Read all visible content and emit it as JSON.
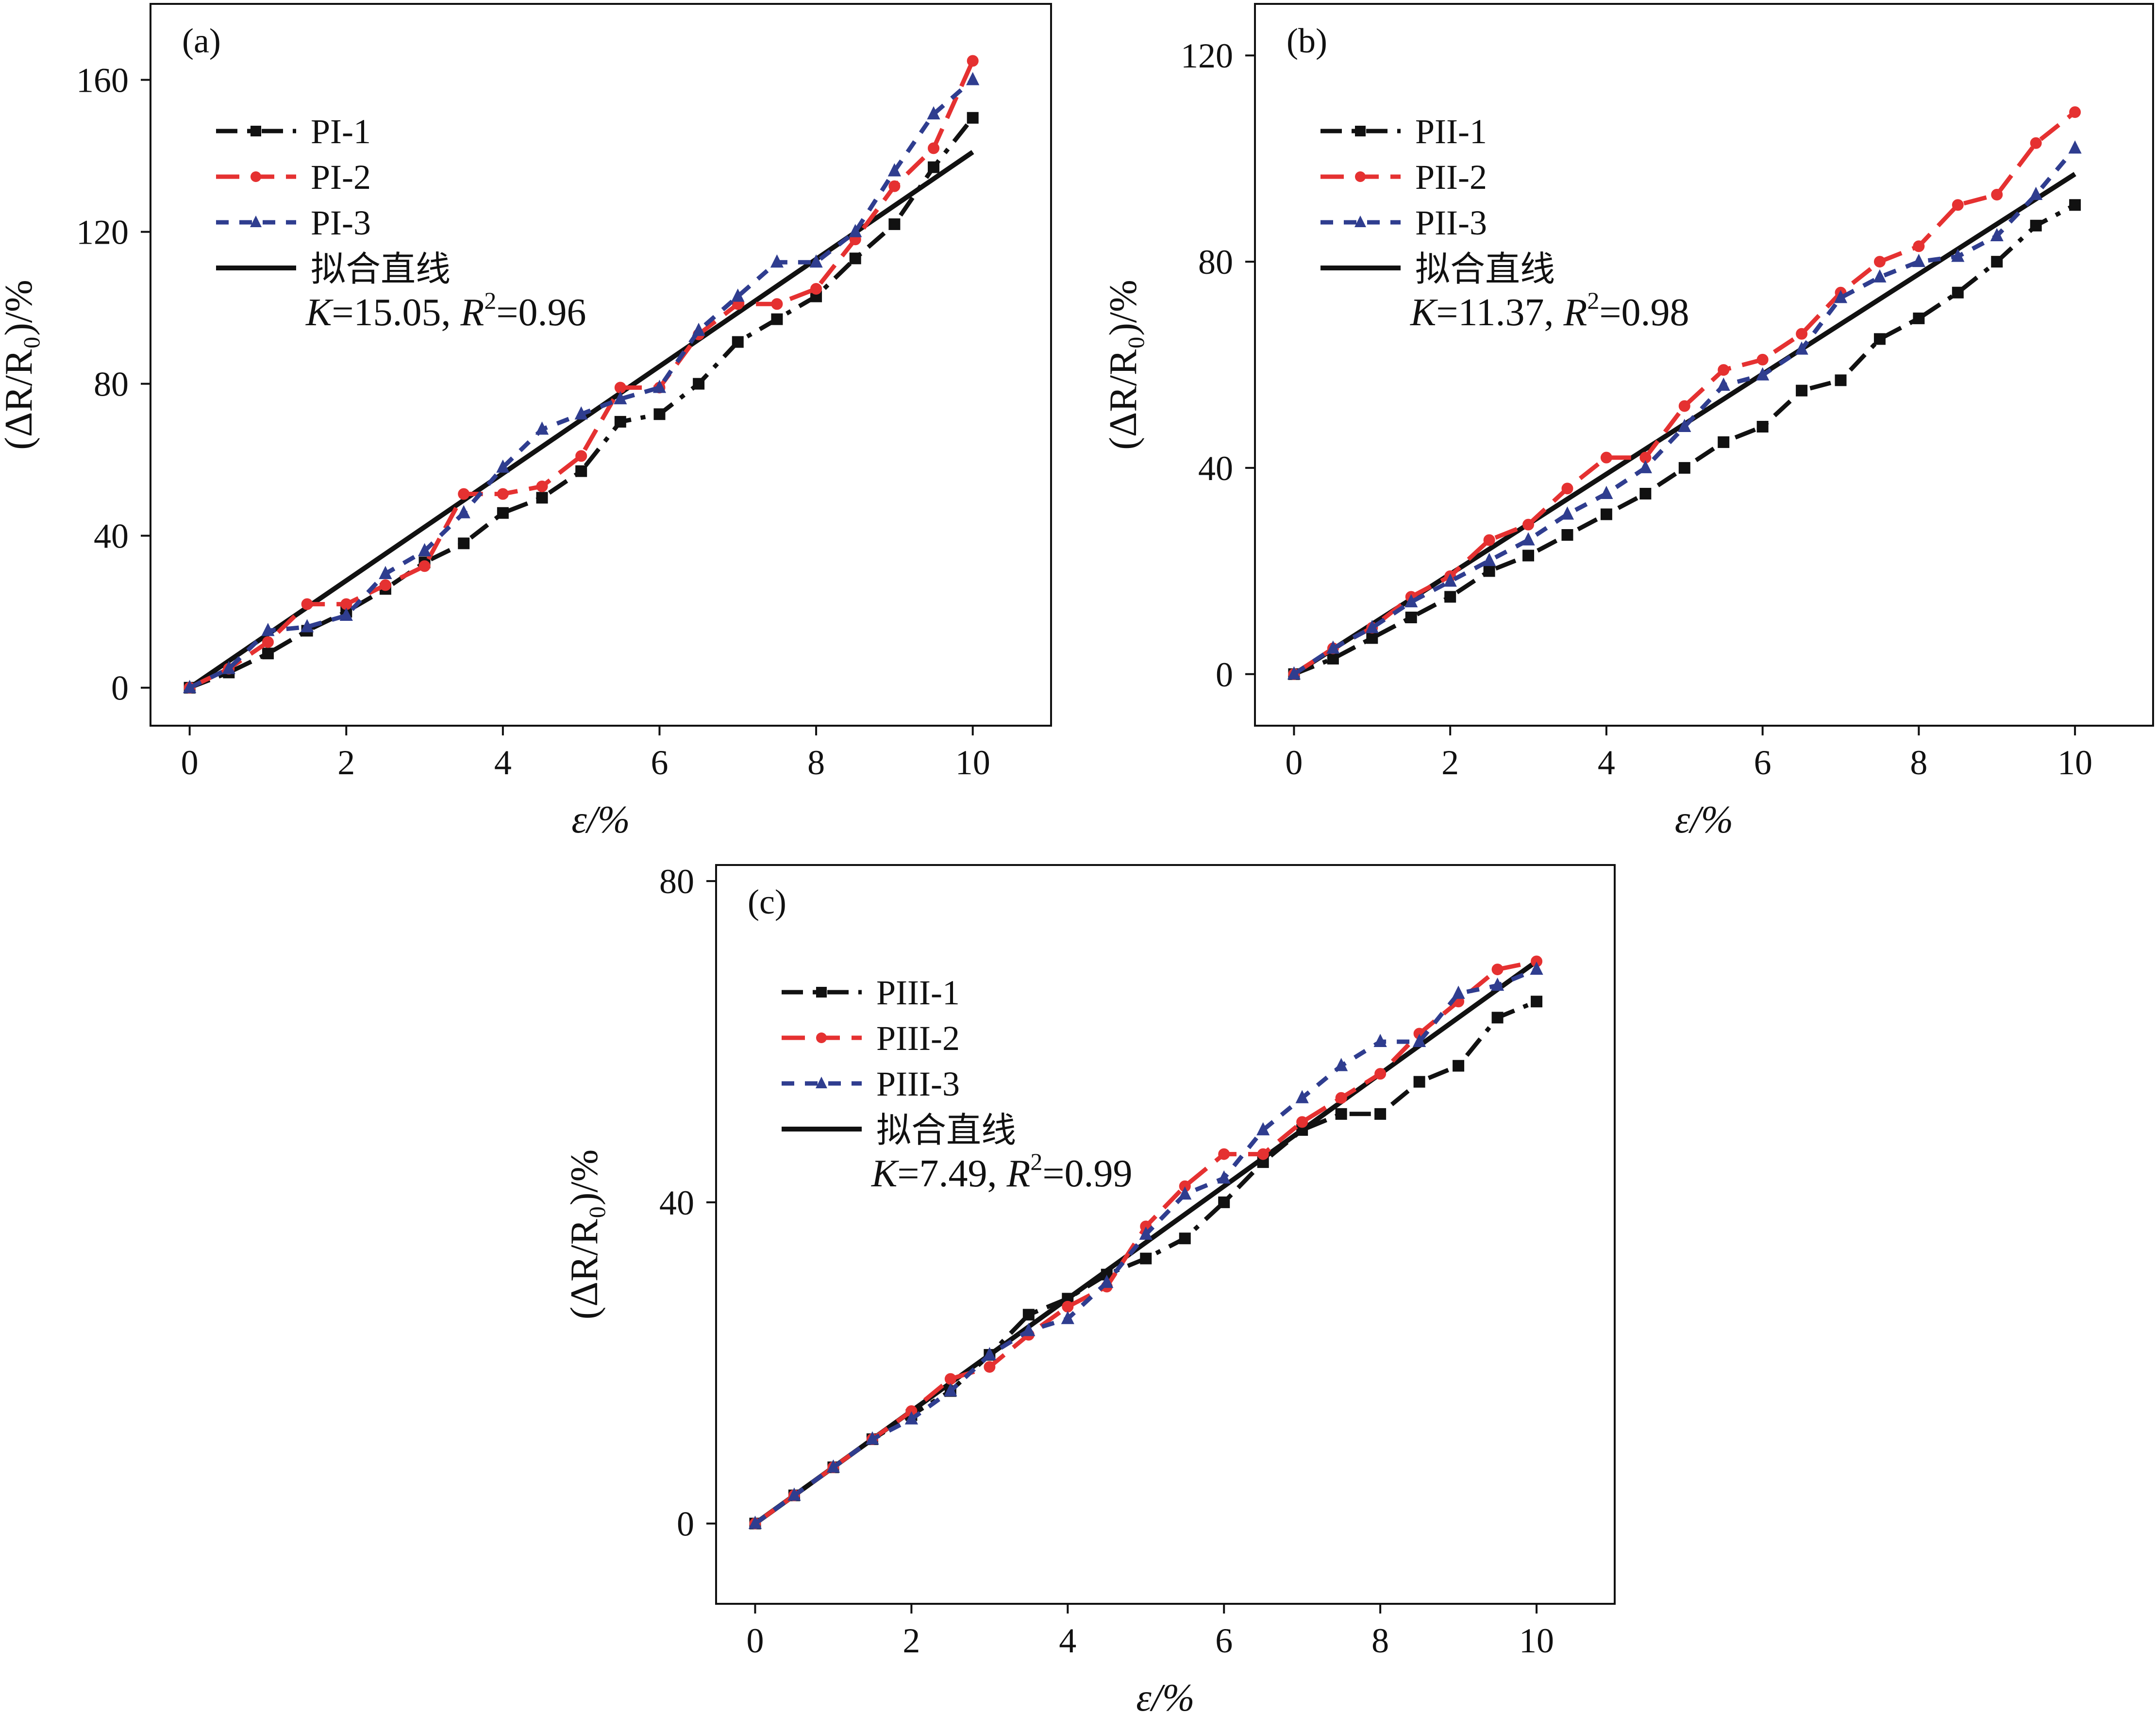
{
  "chart_data": [
    {
      "type": "line",
      "panel_label": "(a)",
      "xlabel": "ε/%",
      "ylabel": "(ΔR/R₀)/%",
      "xlim": [
        -0.5,
        11.0
      ],
      "ylim": [
        -10,
        180
      ],
      "xticks": [
        "0",
        "2",
        "4",
        "6",
        "8",
        "10"
      ],
      "yticks": [
        "0",
        "40",
        "80",
        "120",
        "160"
      ],
      "x": [
        0,
        0.5,
        1,
        1.5,
        2,
        2.5,
        3,
        3.5,
        4,
        4.5,
        5,
        5.5,
        6,
        6.5,
        7,
        7.5,
        8,
        8.5,
        9,
        9.5,
        10
      ],
      "series": [
        {
          "name": "PI-1",
          "color": "#111111",
          "style": "dashdot",
          "marker": "square",
          "values": [
            0,
            4,
            9,
            15,
            20,
            26,
            33,
            38,
            46,
            50,
            57,
            70,
            72,
            80,
            91,
            97,
            103,
            113,
            122,
            137,
            150
          ]
        },
        {
          "name": "PI-2",
          "color": "#e53131",
          "style": "dash",
          "marker": "circle",
          "values": [
            0,
            5,
            12,
            22,
            22,
            27,
            32,
            51,
            51,
            53,
            61,
            79,
            79,
            93,
            101,
            101,
            105,
            118,
            132,
            142,
            165
          ]
        },
        {
          "name": "PI-3",
          "color": "#2f3d8f",
          "style": "dot",
          "marker": "triangle",
          "values": [
            0,
            5,
            15,
            16,
            19,
            30,
            36,
            46,
            58,
            68,
            72,
            76,
            79,
            94,
            103,
            112,
            112,
            120,
            136,
            151,
            160
          ]
        }
      ],
      "fit": {
        "name": "拟合直线",
        "color": "#111111",
        "start": [
          0,
          0
        ],
        "end": [
          10,
          141
        ],
        "k_label": "K",
        "k_value": "=15.05, ",
        "r_label": "R",
        "r_sup": "2",
        "r_value": "=0.96"
      }
    },
    {
      "type": "line",
      "panel_label": "(b)",
      "xlabel": "ε/%",
      "ylabel": "(ΔR/R₀)/%",
      "xlim": [
        -0.5,
        11.0
      ],
      "ylim": [
        -10,
        130
      ],
      "xticks": [
        "0",
        "2",
        "4",
        "6",
        "8",
        "10"
      ],
      "yticks": [
        "0",
        "40",
        "80",
        "120"
      ],
      "x": [
        0,
        0.5,
        1,
        1.5,
        2,
        2.5,
        3,
        3.5,
        4,
        4.5,
        5,
        5.5,
        6,
        6.5,
        7,
        7.5,
        8,
        8.5,
        9,
        9.5,
        10
      ],
      "series": [
        {
          "name": "PII-1",
          "color": "#111111",
          "style": "dashdot",
          "marker": "square",
          "values": [
            0,
            3,
            7,
            11,
            15,
            20,
            23,
            27,
            31,
            35,
            40,
            45,
            48,
            55,
            57,
            65,
            69,
            74,
            80,
            87,
            91
          ]
        },
        {
          "name": "PII-2",
          "color": "#e53131",
          "style": "dash",
          "marker": "circle",
          "values": [
            0,
            5,
            9,
            15,
            19,
            26,
            29,
            36,
            42,
            42,
            52,
            59,
            61,
            66,
            74,
            80,
            83,
            91,
            93,
            103,
            109
          ]
        },
        {
          "name": "PII-3",
          "color": "#2f3d8f",
          "style": "dot",
          "marker": "triangle",
          "values": [
            0,
            5,
            9,
            14,
            18,
            22,
            26,
            31,
            35,
            40,
            48,
            56,
            58,
            63,
            73,
            77,
            80,
            81,
            85,
            93,
            102
          ]
        }
      ],
      "fit": {
        "name": "拟合直线",
        "color": "#111111",
        "start": [
          0,
          0
        ],
        "end": [
          10,
          97
        ],
        "k_label": "K",
        "k_value": "=11.37, ",
        "r_label": "R",
        "r_sup": "2",
        "r_value": "=0.98"
      }
    },
    {
      "type": "line",
      "panel_label": "(c)",
      "xlabel": "ε/%",
      "ylabel": "(ΔR/R₀)/%",
      "xlim": [
        -0.5,
        11.0
      ],
      "ylim": [
        -10,
        82
      ],
      "xticks": [
        "0",
        "2",
        "4",
        "6",
        "8",
        "10"
      ],
      "yticks": [
        "0",
        "40",
        "80"
      ],
      "x": [
        0,
        0.5,
        1,
        1.5,
        2,
        2.5,
        3,
        3.5,
        4,
        4.5,
        5,
        5.5,
        6,
        6.5,
        7,
        7.5,
        8,
        8.5,
        9,
        9.5,
        10
      ],
      "series": [
        {
          "name": "PIII-1",
          "color": "#111111",
          "style": "dashdot",
          "marker": "square",
          "values": [
            0,
            3.5,
            7,
            10.5,
            13.5,
            16.5,
            21,
            26,
            28,
            31,
            33,
            35.5,
            40,
            45,
            49,
            51,
            51,
            55,
            57,
            63,
            65
          ]
        },
        {
          "name": "PIII-2",
          "color": "#e53131",
          "style": "dash",
          "marker": "circle",
          "values": [
            0,
            3.5,
            7,
            10.5,
            14,
            18,
            19.5,
            23.5,
            27,
            29.5,
            37,
            42,
            46,
            46,
            50,
            53,
            56,
            61,
            65,
            69,
            70
          ]
        },
        {
          "name": "PIII-3",
          "color": "#2f3d8f",
          "style": "dot",
          "marker": "triangle",
          "values": [
            0,
            3.5,
            7,
            10.5,
            13,
            16.5,
            21,
            24,
            25.5,
            30,
            36,
            41,
            43,
            49,
            53,
            57,
            60,
            60,
            66,
            67,
            69
          ]
        }
      ],
      "fit": {
        "name": "拟合直线",
        "color": "#111111",
        "start": [
          0,
          0
        ],
        "end": [
          10,
          70
        ],
        "k_label": "K",
        "k_value": "=7.49, ",
        "r_label": "R",
        "r_sup": "2",
        "r_value": "=0.99"
      }
    }
  ]
}
